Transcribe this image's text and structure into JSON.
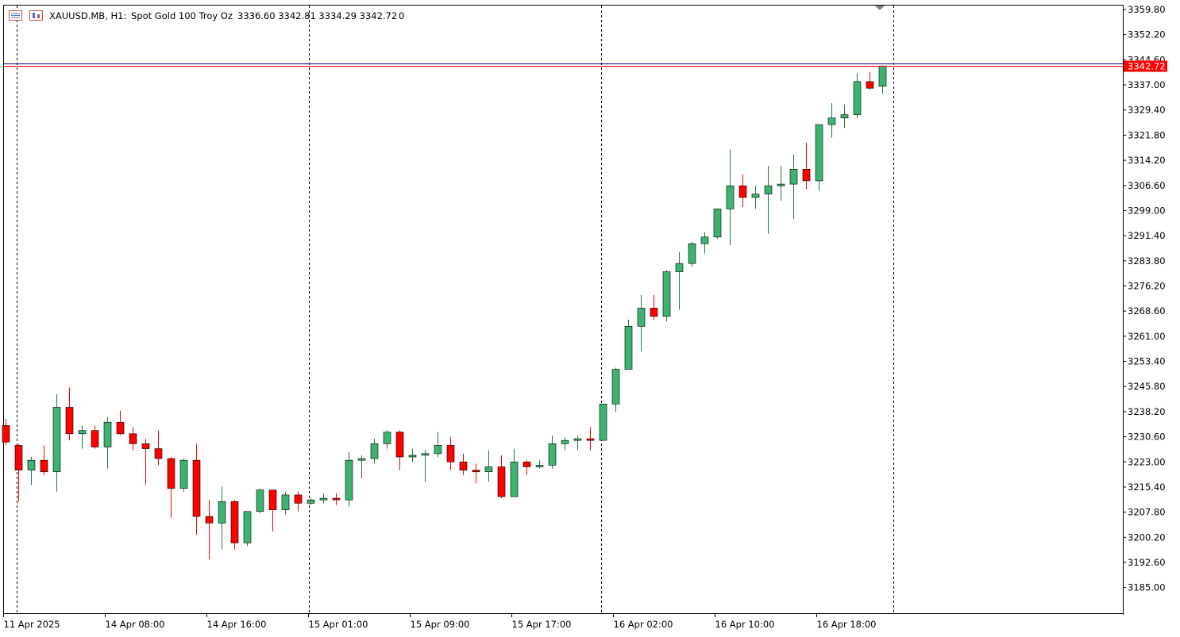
{
  "header": {
    "symbol_period": "XAUUSD.MB, H1:",
    "description": "Spot Gold 100 Troy Oz",
    "ohlc": "3336.60 3342.81 3334.29 3342.72",
    "volume": "0"
  },
  "colors": {
    "background": "#ffffff",
    "bull": "#3cb371",
    "bear": "#ff0000",
    "candle_outline": "#000000",
    "price_line": "#ff0000",
    "price_badge_bg": "#ff0000",
    "ask_line": "#000080",
    "period_separator": "#000000"
  },
  "chart_data": {
    "type": "candlestick",
    "timeframe": "H1",
    "ylim": [
      3177.0,
      3361.0
    ],
    "y_ticks": [
      "3359.80",
      "3352.20",
      "3344.60",
      "3337.00",
      "3329.40",
      "3321.80",
      "3314.20",
      "3306.60",
      "3299.00",
      "3291.40",
      "3283.80",
      "3276.20",
      "3268.60",
      "3261.00",
      "3253.40",
      "3245.80",
      "3238.20",
      "3230.60",
      "3223.00",
      "3215.40",
      "3207.80",
      "3200.20",
      "3192.60",
      "3185.00"
    ],
    "x_ticks": [
      {
        "label": "11 Apr 2025",
        "bar": 0
      },
      {
        "label": "14 Apr 08:00",
        "bar": 8
      },
      {
        "label": "14 Apr 16:00",
        "bar": 16
      },
      {
        "label": "15 Apr 01:00",
        "bar": 24
      },
      {
        "label": "15 Apr 09:00",
        "bar": 32
      },
      {
        "label": "15 Apr 17:00",
        "bar": 40
      },
      {
        "label": "16 Apr 02:00",
        "bar": 48
      },
      {
        "label": "16 Apr 10:00",
        "bar": 56
      },
      {
        "label": "16 Apr 18:00",
        "bar": 64
      }
    ],
    "day_separators_bar": [
      0,
      23,
      46,
      69
    ],
    "current_price": 3342.72,
    "current_price_label": "3342.72",
    "ask_price": 3343.5,
    "ohlc": [
      [
        3234.0,
        3236.0,
        3228.0,
        3229.0
      ],
      [
        3228.0,
        3228.5,
        3211.0,
        3220.5
      ],
      [
        3220.5,
        3224.5,
        3216.0,
        3223.5
      ],
      [
        3223.5,
        3228.0,
        3219.0,
        3220.0
      ],
      [
        3220.0,
        3243.5,
        3214.0,
        3239.5
      ],
      [
        3239.5,
        3245.5,
        3229.5,
        3231.5
      ],
      [
        3231.5,
        3234.0,
        3227.0,
        3232.5
      ],
      [
        3232.5,
        3234.0,
        3227.0,
        3227.5
      ],
      [
        3227.5,
        3236.5,
        3221.0,
        3235.0
      ],
      [
        3235.0,
        3238.5,
        3231.0,
        3231.5
      ],
      [
        3231.5,
        3233.5,
        3226.5,
        3228.5
      ],
      [
        3228.5,
        3230.0,
        3216.0,
        3227.0
      ],
      [
        3227.0,
        3232.5,
        3222.0,
        3224.0
      ],
      [
        3224.0,
        3224.5,
        3206.0,
        3215.0
      ],
      [
        3215.0,
        3224.0,
        3214.0,
        3223.5
      ],
      [
        3223.5,
        3228.5,
        3201.0,
        3206.5
      ],
      [
        3206.5,
        3211.5,
        3193.5,
        3204.5
      ],
      [
        3204.5,
        3215.5,
        3196.5,
        3211.0
      ],
      [
        3211.0,
        3211.5,
        3196.5,
        3198.5
      ],
      [
        3198.5,
        3208.0,
        3197.5,
        3208.0
      ],
      [
        3208.0,
        3215.0,
        3207.5,
        3214.5
      ],
      [
        3214.5,
        3214.5,
        3202.0,
        3208.5
      ],
      [
        3208.5,
        3214.0,
        3207.0,
        3213.0
      ],
      [
        3213.0,
        3214.0,
        3208.0,
        3210.5
      ],
      [
        3210.5,
        3212.0,
        3210.0,
        3211.5
      ],
      [
        3211.5,
        3213.5,
        3210.5,
        3212.0
      ],
      [
        3212.0,
        3213.5,
        3210.0,
        3211.5
      ],
      [
        3211.5,
        3226.0,
        3209.5,
        3223.5
      ],
      [
        3223.5,
        3225.0,
        3218.0,
        3224.0
      ],
      [
        3224.0,
        3230.0,
        3222.5,
        3228.5
      ],
      [
        3228.5,
        3232.5,
        3227.0,
        3232.0
      ],
      [
        3232.0,
        3232.5,
        3220.5,
        3224.5
      ],
      [
        3224.5,
        3227.0,
        3223.0,
        3225.0
      ],
      [
        3225.0,
        3226.5,
        3217.0,
        3225.5
      ],
      [
        3225.5,
        3232.0,
        3224.5,
        3228.0
      ],
      [
        3228.0,
        3230.5,
        3220.5,
        3223.0
      ],
      [
        3223.0,
        3225.5,
        3219.0,
        3220.5
      ],
      [
        3220.5,
        3222.5,
        3216.5,
        3220.0
      ],
      [
        3220.0,
        3226.5,
        3217.0,
        3221.5
      ],
      [
        3221.5,
        3225.0,
        3212.0,
        3212.5
      ],
      [
        3212.5,
        3227.0,
        3212.5,
        3223.0
      ],
      [
        3223.0,
        3223.5,
        3219.0,
        3221.5
      ],
      [
        3221.5,
        3223.5,
        3221.0,
        3222.0
      ],
      [
        3222.0,
        3231.0,
        3221.0,
        3228.5
      ],
      [
        3228.5,
        3230.5,
        3226.5,
        3229.5
      ],
      [
        3229.5,
        3231.0,
        3226.5,
        3230.0
      ],
      [
        3230.0,
        3233.5,
        3226.5,
        3229.5
      ],
      [
        3229.5,
        3240.5,
        3229.5,
        3240.5
      ],
      [
        3240.5,
        3251.5,
        3238.0,
        3251.0
      ],
      [
        3251.0,
        3266.0,
        3251.0,
        3264.0
      ],
      [
        3264.0,
        3273.5,
        3256.5,
        3269.5
      ],
      [
        3269.5,
        3273.5,
        3266.0,
        3267.0
      ],
      [
        3267.0,
        3281.0,
        3265.5,
        3280.5
      ],
      [
        3280.5,
        3286.5,
        3269.0,
        3283.0
      ],
      [
        3283.0,
        3289.5,
        3282.0,
        3289.0
      ],
      [
        3289.0,
        3292.5,
        3286.0,
        3291.0
      ],
      [
        3291.0,
        3299.5,
        3290.5,
        3299.5
      ],
      [
        3299.5,
        3317.5,
        3288.5,
        3306.5
      ],
      [
        3306.5,
        3310.0,
        3300.0,
        3303.0
      ],
      [
        3303.0,
        3306.5,
        3299.5,
        3304.0
      ],
      [
        3304.0,
        3312.5,
        3292.0,
        3306.5
      ],
      [
        3306.5,
        3312.5,
        3302.0,
        3307.0
      ],
      [
        3307.0,
        3316.0,
        3296.5,
        3311.5
      ],
      [
        3311.5,
        3319.5,
        3305.5,
        3308.0
      ],
      [
        3308.0,
        3325.0,
        3305.0,
        3325.0
      ],
      [
        3325.0,
        3331.5,
        3321.0,
        3327.0
      ],
      [
        3327.0,
        3331.0,
        3324.0,
        3328.0
      ],
      [
        3328.0,
        3340.5,
        3327.0,
        3338.0
      ],
      [
        3338.0,
        3341.0,
        3335.5,
        3336.0
      ],
      [
        3336.6,
        3342.81,
        3334.29,
        3342.72
      ]
    ]
  }
}
